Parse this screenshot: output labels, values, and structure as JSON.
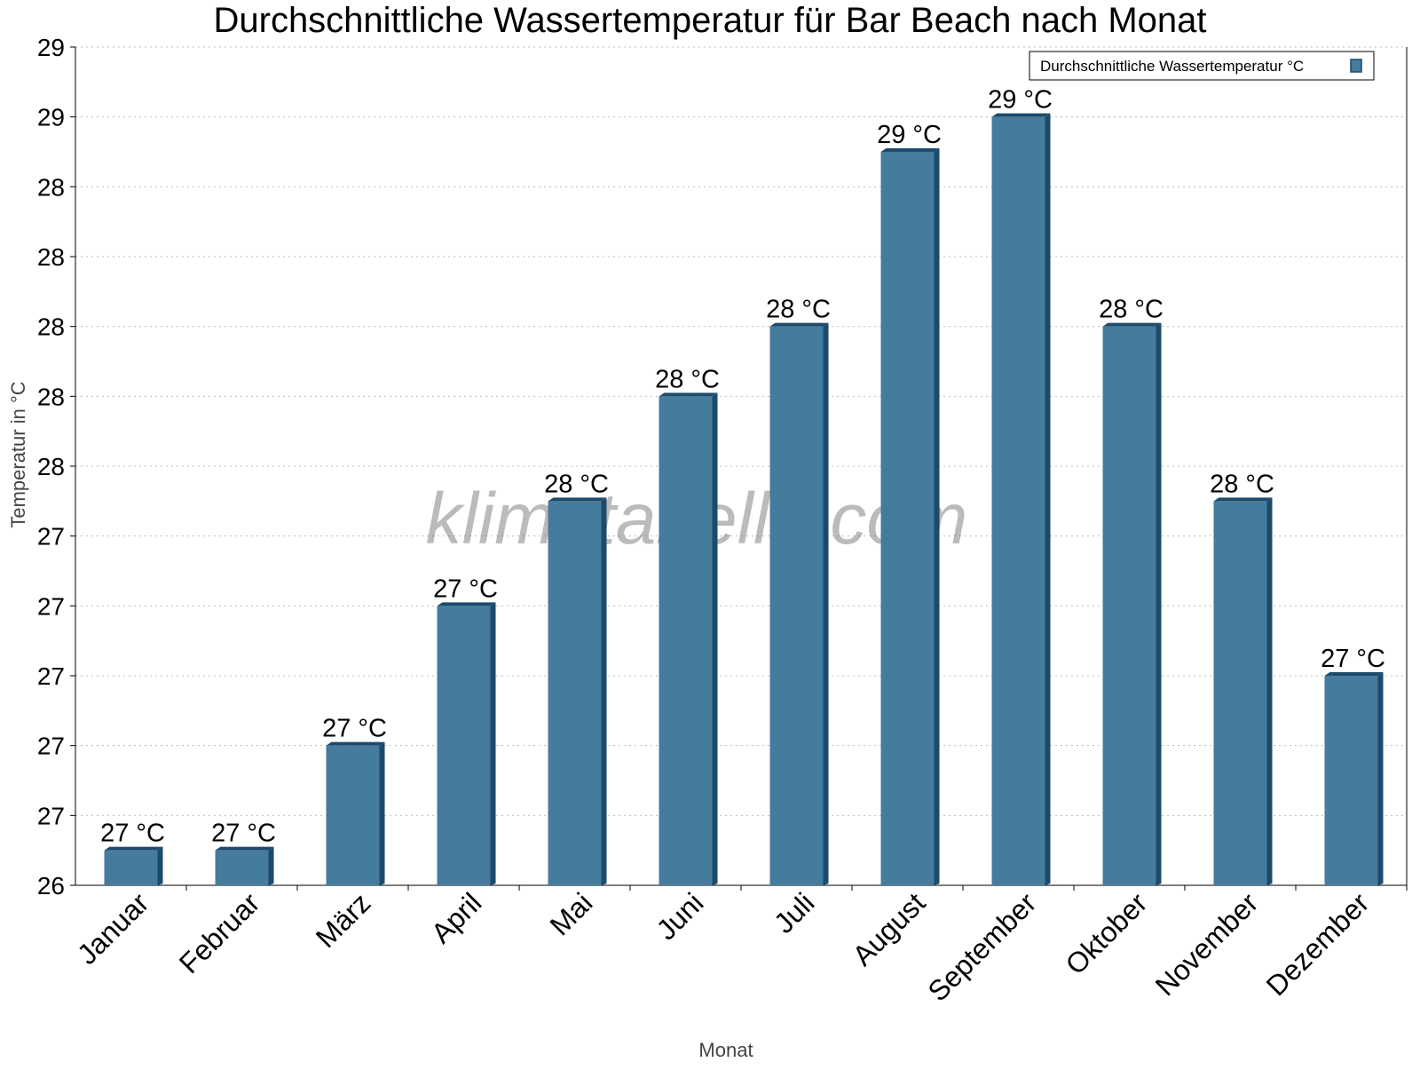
{
  "chart_data": {
    "type": "bar",
    "title": "Durchschnittliche Wassertemperatur für Bar Beach nach Monat",
    "xlabel": "Monat",
    "ylabel": "Temperatur in °C",
    "ylim": [
      26.4,
      28.8
    ],
    "yticks": [
      26.4,
      26.6,
      26.8,
      27.0,
      27.2,
      27.4,
      27.6,
      27.8,
      28.0,
      28.2,
      28.4,
      28.6,
      28.8
    ],
    "ytick_labels": [
      "26",
      "27",
      "27",
      "27",
      "27",
      "27",
      "28",
      "28",
      "28",
      "28",
      "28",
      "29",
      "29"
    ],
    "grid": true,
    "legend_position": "top-right",
    "categories": [
      "Januar",
      "Februar",
      "März",
      "April",
      "Mai",
      "Juni",
      "Juli",
      "August",
      "September",
      "Oktober",
      "November",
      "Dezember"
    ],
    "series": [
      {
        "name": "Durchschnittliche Wassertemperatur °C",
        "values": [
          26.5,
          26.5,
          26.8,
          27.2,
          27.5,
          27.8,
          28.0,
          28.5,
          28.6,
          28.0,
          27.5,
          27.0
        ],
        "labels": [
          "27 °C",
          "27 °C",
          "27 °C",
          "27 °C",
          "28 °C",
          "28 °C",
          "28 °C",
          "29 °C",
          "29 °C",
          "28 °C",
          "28 °C",
          "27 °C"
        ]
      }
    ],
    "colors": {
      "bar": "#457b9d",
      "bar_side": "#1d4a6b"
    },
    "watermark": "klimatabelle.com"
  }
}
